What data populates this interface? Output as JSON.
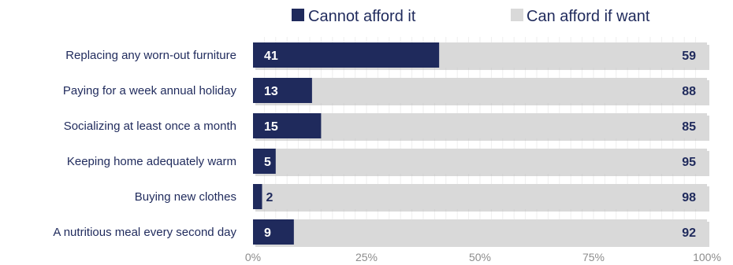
{
  "chart_data": {
    "type": "bar",
    "orientation": "horizontal",
    "stacked": true,
    "title": "",
    "xlabel": "",
    "ylabel": "",
    "categories": [
      "Replacing any worn-out furniture",
      "Paying for a week annual holiday",
      "Socializing at least once a month",
      "Keeping home adequately warm",
      "Buying new clothes",
      "A nutritious meal every second day"
    ],
    "series": [
      {
        "name": "Cannot afford it",
        "color": "#1f2a5c",
        "values": [
          41,
          13,
          15,
          5,
          2,
          9
        ]
      },
      {
        "name": "Can afford if want",
        "color": "#d9d9d9",
        "values": [
          59,
          88,
          85,
          95,
          98,
          92
        ]
      }
    ],
    "xlim": [
      0,
      100
    ],
    "x_ticks": [
      "0%",
      "25%",
      "50%",
      "75%",
      "100%"
    ],
    "legend_position": "top",
    "grid": true,
    "label_color": "#1f2a5c"
  }
}
